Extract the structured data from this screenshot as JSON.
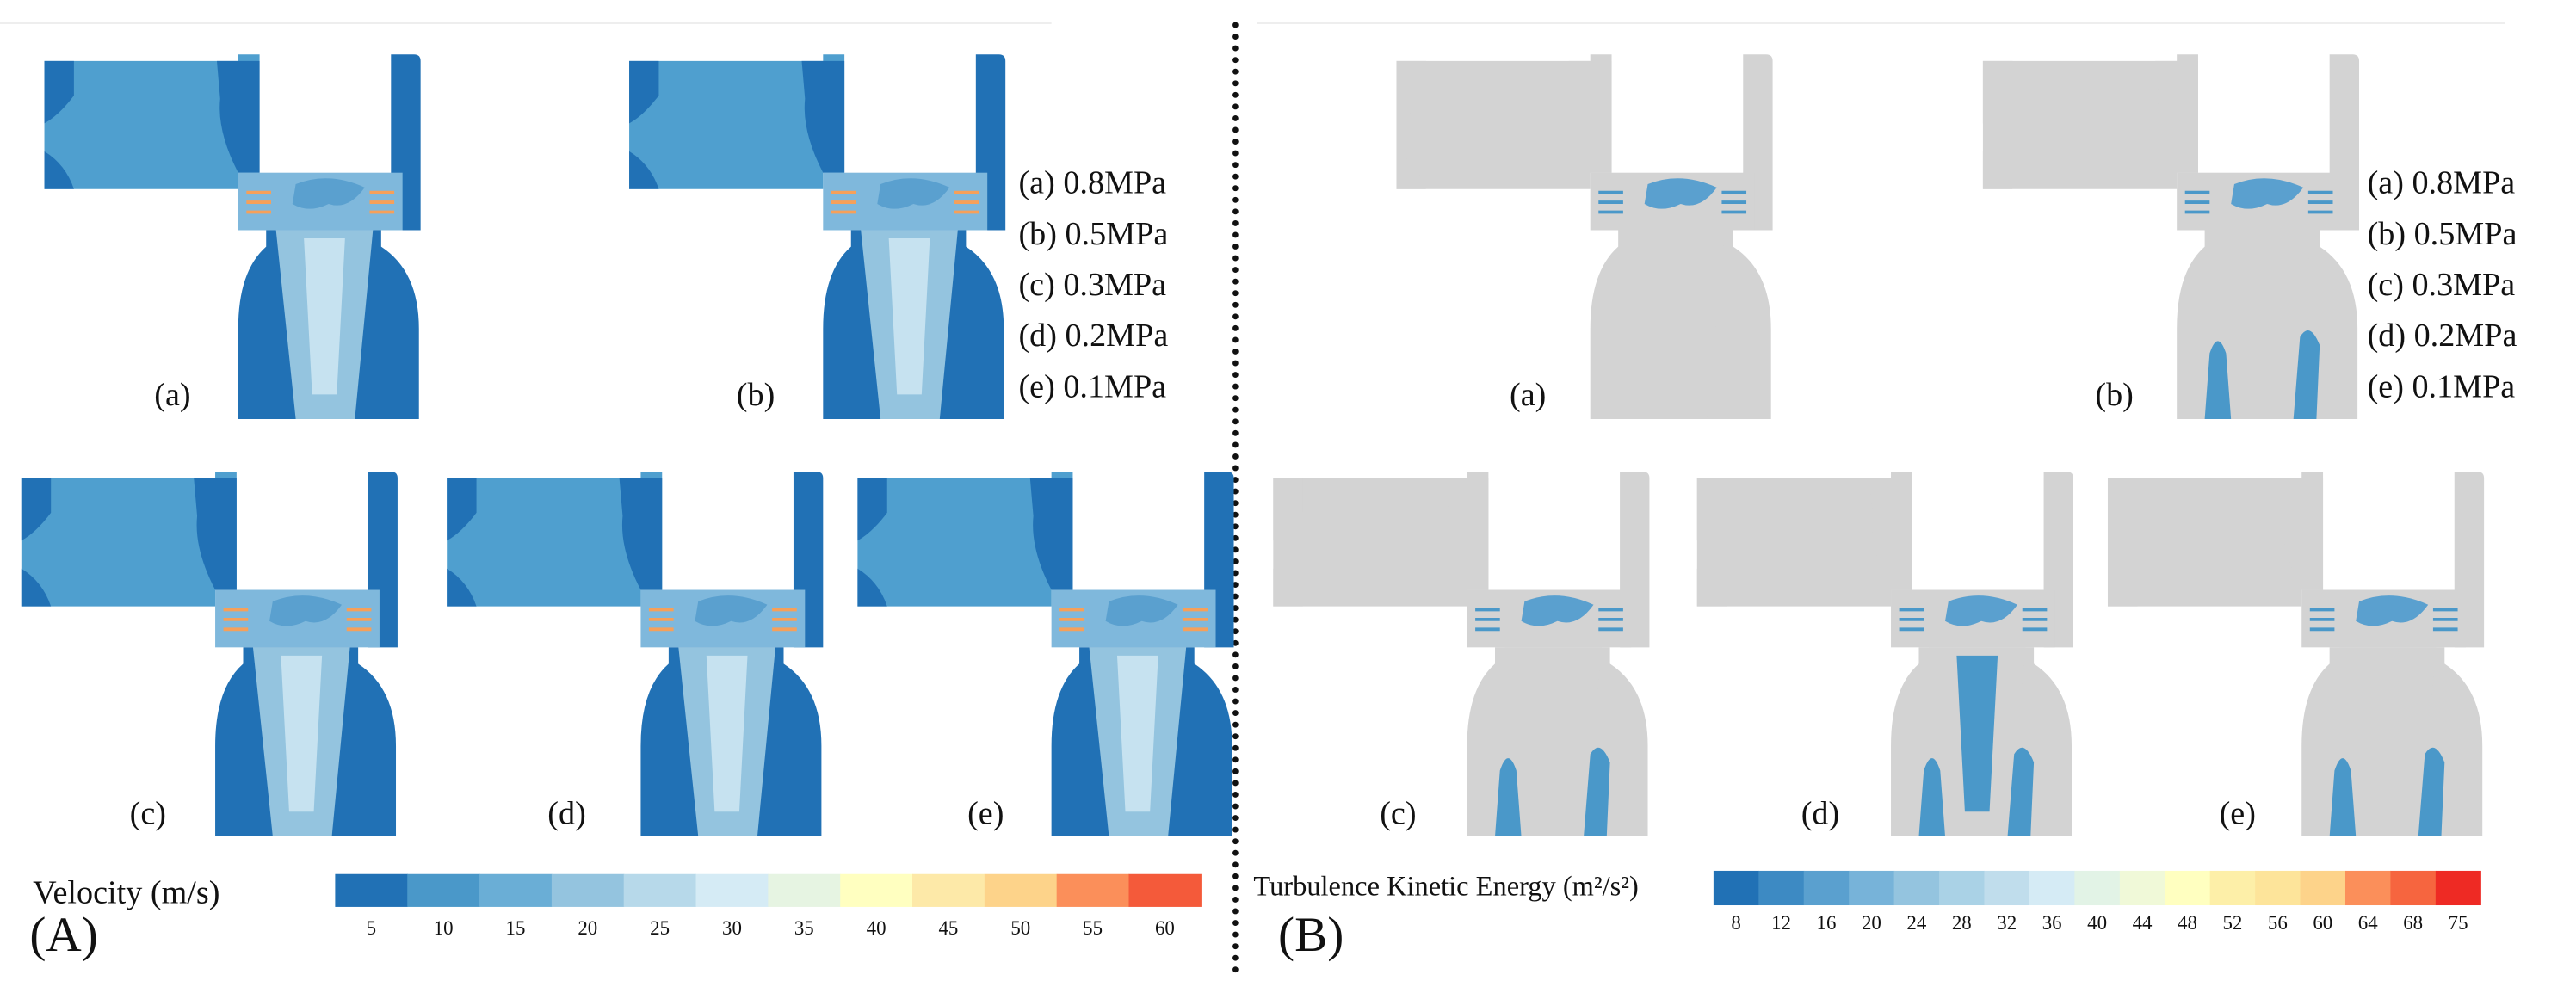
{
  "panels": [
    {
      "label": "(A)",
      "subplot_labels": [
        "(a)",
        "(b)",
        "(c)",
        "(d)",
        "(e)"
      ],
      "legend": [
        "(a) 0.8MPa",
        "(b) 0.5MPa",
        "(c) 0.3MPa",
        "(d) 0.2MPa",
        "(e) 0.1MPa"
      ],
      "colorbar": {
        "title": "Velocity (m/s)",
        "ticks": [
          5,
          10,
          15,
          20,
          25,
          30,
          35,
          40,
          45,
          50,
          55,
          60
        ],
        "colors": [
          "#2171b5",
          "#4a98c9",
          "#6aaed6",
          "#94c4df",
          "#b7d9ea",
          "#d5ebf5",
          "#e6f4e2",
          "#ffffc0",
          "#fde9a8",
          "#fdd38a",
          "#fb8f5a",
          "#f45a3a"
        ]
      }
    },
    {
      "label": "(B)",
      "subplot_labels": [
        "(a)",
        "(b)",
        "(c)",
        "(d)",
        "(e)"
      ],
      "legend": [
        "(a) 0.8MPa",
        "(b) 0.5MPa",
        "(c) 0.3MPa",
        "(d) 0.2MPa",
        "(e) 0.1MPa"
      ],
      "colorbar": {
        "title": "Turbulence Kinetic Energy (m²/s²)",
        "ticks": [
          8,
          12,
          16,
          20,
          24,
          28,
          32,
          36,
          40,
          44,
          48,
          52,
          56,
          60,
          64,
          68,
          75
        ],
        "colors": [
          "#2171b5",
          "#3d8ac3",
          "#5aa0cf",
          "#77b3d9",
          "#94c4df",
          "#aad2e6",
          "#c0ddec",
          "#d5ebf5",
          "#e2f3e6",
          "#f0f9d8",
          "#ffffc0",
          "#fdefa8",
          "#fde49a",
          "#fdd38a",
          "#fb8f5a",
          "#f6653f",
          "#ee2a24"
        ]
      }
    }
  ]
}
